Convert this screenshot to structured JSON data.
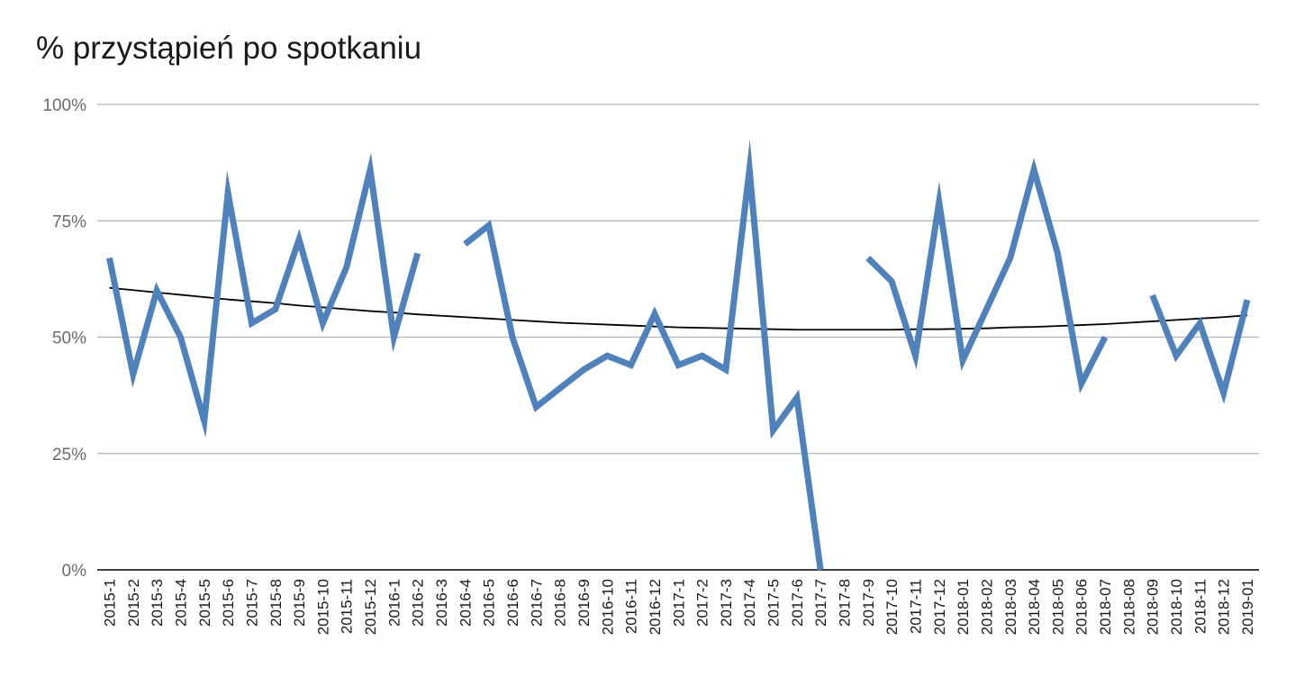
{
  "chart_data": {
    "type": "line",
    "title": "% przystąpień po spotkaniu",
    "xlabel": "",
    "ylabel": "",
    "ylim": [
      0,
      100
    ],
    "yticks": [
      "0%",
      "25%",
      "50%",
      "75%",
      "100%"
    ],
    "grid": true,
    "legend": "none",
    "categories": [
      "2015-1",
      "2015-2",
      "2015-3",
      "2015-4",
      "2015-5",
      "2015-6",
      "2015-7",
      "2015-8",
      "2015-9",
      "2015-10",
      "2015-11",
      "2015-12",
      "2016-1",
      "2016-2",
      "2016-3",
      "2016-4",
      "2016-5",
      "2016-6",
      "2016-7",
      "2016-8",
      "2016-9",
      "2016-10",
      "2016-11",
      "2016-12",
      "2017-1",
      "2017-2",
      "2017-3",
      "2017-4",
      "2017-5",
      "2017-6",
      "2017-7",
      "2017-8",
      "2017-9",
      "2017-10",
      "2017-11",
      "2017-12",
      "2018-01",
      "2018-02",
      "2018-03",
      "2018-04",
      "2018-05",
      "2018-06",
      "2018-07",
      "2018-08",
      "2018-09",
      "2018-10",
      "2018-11",
      "2018-12",
      "2019-01"
    ],
    "series": [
      {
        "values": [
          67,
          42,
          60,
          50,
          32,
          81,
          53,
          56,
          71,
          53,
          65,
          86,
          50,
          68,
          null,
          70,
          74,
          50,
          35,
          39,
          43,
          46,
          44,
          55,
          44,
          46,
          43,
          86,
          30,
          37,
          0,
          null,
          67,
          62,
          46,
          79,
          45,
          56,
          67,
          86,
          68,
          40,
          50,
          null,
          59,
          46,
          53,
          38,
          58
        ],
        "color": "#4f81bd"
      }
    ],
    "trendline": {
      "type": "polynomial",
      "color": "#000000",
      "values": [
        60.6,
        60.1,
        59.6,
        59.1,
        58.6,
        58.1,
        57.7,
        57.3,
        56.8,
        56.4,
        56.0,
        55.6,
        55.3,
        54.9,
        54.6,
        54.3,
        54.0,
        53.7,
        53.4,
        53.1,
        52.9,
        52.7,
        52.5,
        52.3,
        52.1,
        52.0,
        51.9,
        51.8,
        51.7,
        51.6,
        51.6,
        51.6,
        51.6,
        51.6,
        51.7,
        51.7,
        51.8,
        51.9,
        52.1,
        52.2,
        52.4,
        52.6,
        52.8,
        53.1,
        53.4,
        53.7,
        54.0,
        54.3,
        54.7
      ]
    }
  }
}
